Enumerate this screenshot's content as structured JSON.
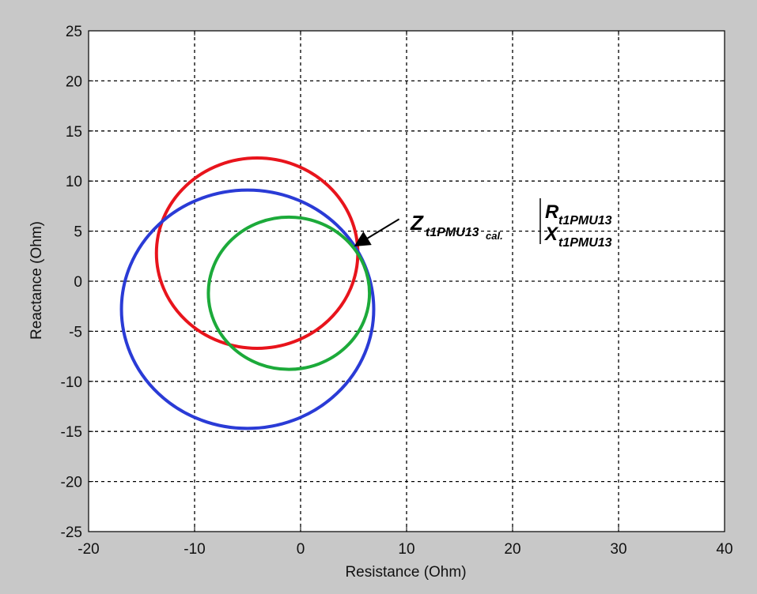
{
  "chart_data": {
    "type": "line",
    "title": "",
    "xlabel": "Resistance (Ohm)",
    "ylabel": "Reactance (Ohm)",
    "xlim": [
      -20,
      40
    ],
    "ylim": [
      -25,
      25
    ],
    "x_ticks": [
      -20,
      -10,
      0,
      10,
      20,
      30,
      40
    ],
    "y_ticks": [
      25,
      20,
      15,
      10,
      5,
      0,
      -5,
      -10,
      -15,
      -20,
      -25
    ],
    "grid": true,
    "grid_style": "dashed",
    "background": "#c8c8c8",
    "series": [
      {
        "shape": "circle",
        "color": "#e8141c",
        "center": [
          -4.1,
          2.8
        ],
        "radius": 9.5
      },
      {
        "shape": "circle",
        "color": "#2a3bd6",
        "center": [
          -5.0,
          -2.8
        ],
        "radius": 11.9
      },
      {
        "shape": "circle",
        "color": "#1caa3a",
        "center": [
          -1.1,
          -1.2
        ],
        "radius": 7.6
      }
    ],
    "annotation": {
      "main": "Z",
      "main_sub": "t1PMU13",
      "main_subsub": "cal.",
      "top": "R",
      "top_sub": "t1PMU13",
      "bottom": "X",
      "bottom_sub": "t1PMU13",
      "arrow_to": [
        5.0,
        3.4
      ],
      "arrow_from": [
        9.3,
        6.2
      ]
    }
  }
}
